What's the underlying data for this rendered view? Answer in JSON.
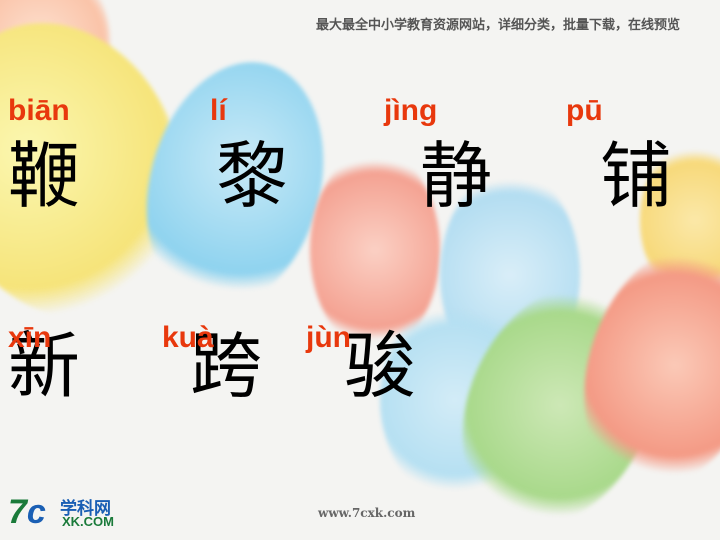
{
  "header": {
    "text": "最大最全中小学教育资源网站，详细分类，批量下载，在线预览"
  },
  "characters": [
    {
      "pinyin": "biān",
      "hanzi": "鞭"
    },
    {
      "pinyin": "lí",
      "hanzi": "黎"
    },
    {
      "pinyin": "jìng",
      "hanzi": "静"
    },
    {
      "pinyin": "pū",
      "hanzi": "铺"
    },
    {
      "pinyin": "xīn",
      "hanzi": "新"
    },
    {
      "pinyin": "kuà",
      "hanzi": "跨"
    },
    {
      "pinyin": "jùn",
      "hanzi": "骏"
    }
  ],
  "logo": {
    "mark_7": "7",
    "mark_c": "c",
    "cn": "学科网",
    "en": "XK.COM"
  },
  "footer": {
    "url": "www.7cxk.com"
  },
  "colors": {
    "pinyin": "#e8380d",
    "hanzi": "#000000"
  }
}
